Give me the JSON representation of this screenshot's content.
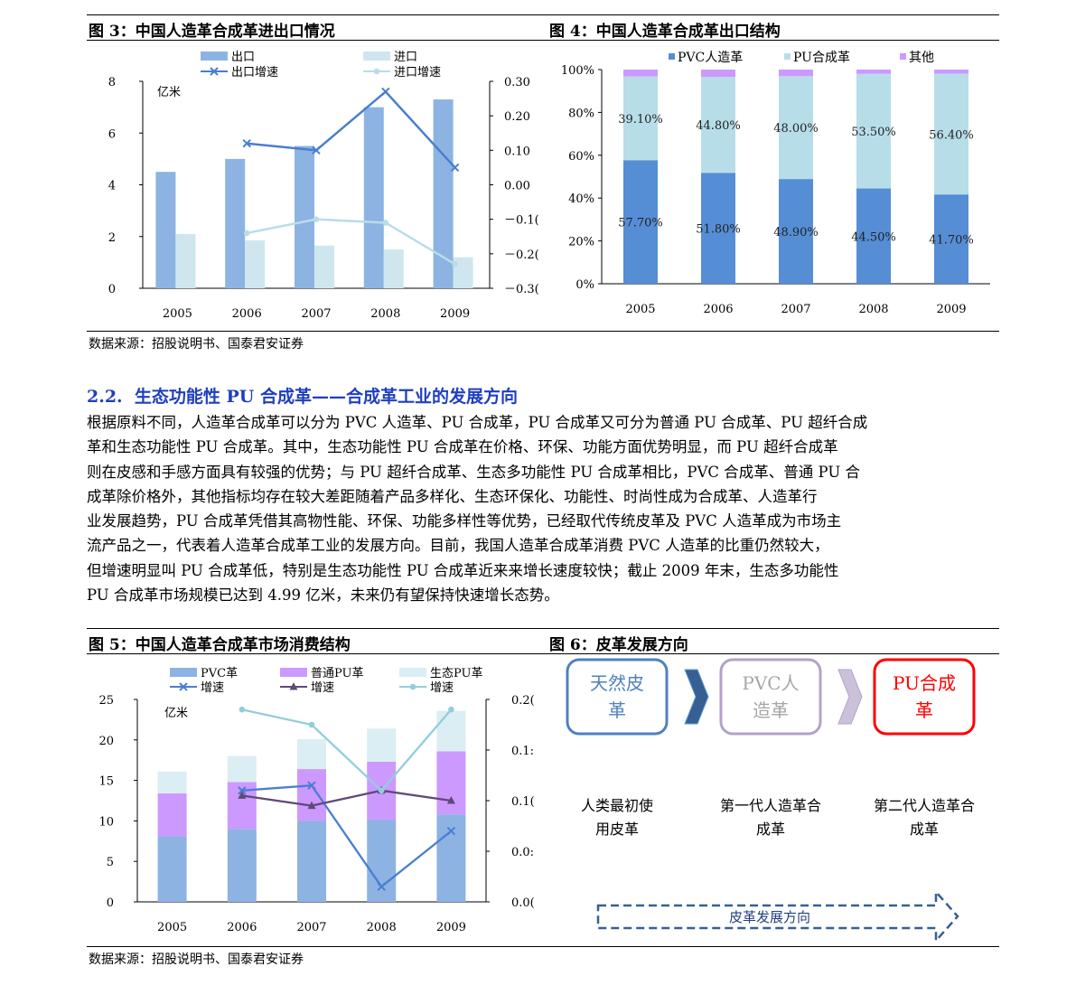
{
  "fig3": {
    "title": "图 3：中国人造革合成革进出口情况",
    "unit": "亿米",
    "chart_data": {
      "type": "bar",
      "categories": [
        "2005",
        "2006",
        "2007",
        "2008",
        "2009"
      ],
      "series": [
        {
          "name": "出口",
          "values": [
            4.5,
            5.0,
            5.5,
            7.0,
            7.3
          ],
          "axis": "left",
          "kind": "bar",
          "color": "#8db3e2"
        },
        {
          "name": "进口",
          "values": [
            2.1,
            1.85,
            1.65,
            1.5,
            1.2
          ],
          "axis": "left",
          "kind": "bar",
          "color": "#cfe6ee"
        },
        {
          "name": "出口增速",
          "values": [
            null,
            0.12,
            0.1,
            0.27,
            0.05
          ],
          "axis": "right",
          "kind": "line",
          "color": "#4a7ed1"
        },
        {
          "name": "进口增速",
          "values": [
            null,
            -0.14,
            -0.1,
            -0.11,
            -0.23
          ],
          "axis": "right",
          "kind": "line",
          "color": "#b9dde8"
        }
      ],
      "ylim_left": [
        0,
        8
      ],
      "yticks_left": [
        "0",
        "2",
        "4",
        "6",
        "8"
      ],
      "ylim_right": [
        -0.3,
        0.3
      ],
      "yticks_right": [
        "－0.3(",
        "－0.2(",
        "－0.1(",
        "0.00",
        "0.10",
        "0.20",
        "0.30"
      ],
      "legend": "top"
    }
  },
  "fig4": {
    "title": "图 4：中国人造革合成革出口结构",
    "chart_data": {
      "type": "bar",
      "stacked": true,
      "categories": [
        "2005",
        "2006",
        "2007",
        "2008",
        "2009"
      ],
      "series": [
        {
          "name": "PVC人造革",
          "values": [
            57.7,
            51.8,
            48.9,
            44.5,
            41.7
          ],
          "labels": [
            "57.70%",
            "51.80%",
            "48.90%",
            "44.50%",
            "41.70%"
          ],
          "color": "#558ed5"
        },
        {
          "name": "PU合成革",
          "values": [
            39.1,
            44.8,
            48.0,
            53.5,
            56.4
          ],
          "labels": [
            "39.10%",
            "44.80%",
            "48.00%",
            "53.50%",
            "56.40%"
          ],
          "color": "#b7dee8"
        },
        {
          "name": "其他",
          "values": [
            3.2,
            3.4,
            3.1,
            2.0,
            1.9
          ],
          "color": "#cc99ff"
        }
      ],
      "ylim": [
        0,
        100
      ],
      "yticks": [
        "0%",
        "20%",
        "40%",
        "60%",
        "80%",
        "100%"
      ],
      "legend": "top"
    }
  },
  "source1": "数据来源：招股说明书、国泰君安证券",
  "section": {
    "number": "2.2.",
    "title": "生态功能性 PU 合成革——合成革工业的发展方向"
  },
  "paragraph_lines": [
    "根据原料不同，人造革合成革可以分为 PVC 人造革、PU 合成革，PU 合成革又可分为普通 PU 合成革、PU 超纤合成",
    "革和生态功能性 PU 合成革。其中，生态功能性 PU 合成革在价格、环保、功能方面优势明显，而 PU 超纤合成革",
    "则在皮感和手感方面具有较强的优势；与 PU 超纤合成革、生态多功能性 PU 合成革相比，PVC 合成革、普通 PU 合",
    "成革除价格外，其他指标均存在较大差距随着产品多样化、生态环保化、功能性、时尚性成为合成革、人造革行",
    "业发展趋势，PU 合成革凭借其高物性能、环保、功能多样性等优势，已经取代传统皮革及 PVC 人造革成为市场主",
    "流产品之一，代表着人造革合成革工业的发展方向。目前，我国人造革合成革消费 PVC 人造革的比重仍然较大，",
    "但增速明显叫 PU 合成革低，特别是生态功能性 PU 合成革近来来增长速度较快；截止 2009 年末，生态多功能性",
    "PU 合成革市场规模已达到 4.99 亿米，未来仍有望保持快速增长态势。"
  ],
  "fig5": {
    "title": "图 5：中国人造革合成革市场消费结构",
    "unit": "亿米",
    "chart_data": {
      "type": "bar",
      "stacked": true,
      "categories": [
        "2005",
        "2006",
        "2007",
        "2008",
        "2009"
      ],
      "series": [
        {
          "name": "PVC革",
          "values": [
            8.1,
            9.0,
            10.0,
            10.1,
            10.8
          ],
          "axis": "left",
          "kind": "bar",
          "color": "#8db3e2"
        },
        {
          "name": "普通PU革",
          "values": [
            5.3,
            5.8,
            6.4,
            7.2,
            7.8
          ],
          "axis": "left",
          "kind": "bar",
          "color": "#cc99ff"
        },
        {
          "name": "生态PU革",
          "values": [
            2.7,
            3.2,
            3.7,
            4.1,
            5.0
          ],
          "axis": "left",
          "kind": "bar",
          "color": "#daeef3"
        },
        {
          "name": "增速",
          "values": [
            null,
            0.11,
            0.115,
            0.015,
            0.07
          ],
          "axis": "right",
          "kind": "line",
          "marker": "x",
          "color": "#4a7ed1"
        },
        {
          "name": "增速",
          "values": [
            null,
            0.105,
            0.095,
            0.11,
            0.1
          ],
          "axis": "right",
          "kind": "line",
          "marker": "triangle",
          "color": "#60497a"
        },
        {
          "name": "增速",
          "values": [
            null,
            0.19,
            0.175,
            0.11,
            0.19
          ],
          "axis": "right",
          "kind": "line",
          "marker": "dot",
          "color": "#93cddd"
        }
      ],
      "ylim_left": [
        0,
        25
      ],
      "yticks_left": [
        "0",
        "5",
        "10",
        "15",
        "20",
        "25"
      ],
      "ylim_right": [
        0,
        0.2
      ],
      "yticks_right": [
        "0.0(",
        "0.0:",
        "0.1(",
        "0.1:",
        "0.2("
      ],
      "legend": "top"
    }
  },
  "fig6": {
    "title": "图 6：皮革发展方向",
    "stages": [
      {
        "name": "天然皮革",
        "line1": "天然皮",
        "line2": "革",
        "color": "#4f81bd",
        "text_color": "#4f81bd",
        "desc1": "人类最初使",
        "desc2": "用皮革"
      },
      {
        "name": "PVC人造革",
        "line1": "PVC人",
        "line2": "造革",
        "color": "#b3a2c7",
        "text_color": "#a6a6a6",
        "desc1": "第一代人造革合",
        "desc2": "成革"
      },
      {
        "name": "PU合成革",
        "line1": "PU合成",
        "line2": "革",
        "color": "#ff0000",
        "text_color": "#ff0000",
        "desc1": "第二代人造革合",
        "desc2": "成革"
      }
    ],
    "arrow_label": "皮革发展方向"
  },
  "source2": "数据来源：招股说明书、国泰君安证券"
}
